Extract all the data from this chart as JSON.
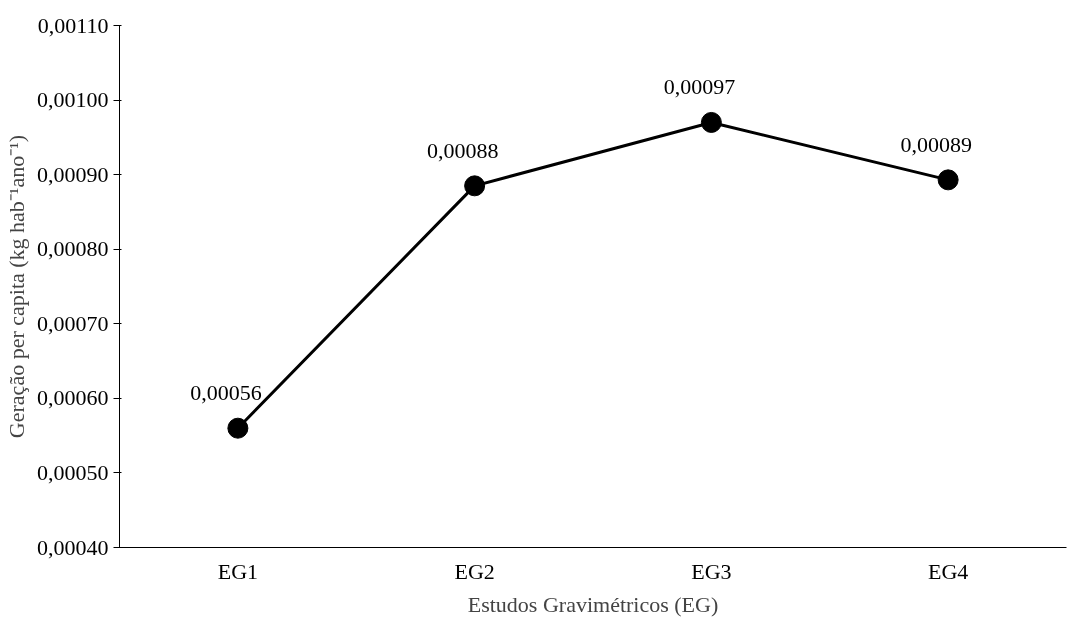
{
  "chart_data": {
    "type": "line",
    "xlabel": "Estudos Gravimétricos (EG)",
    "ylabel": "Geração per capita (kg hab⁻¹ano⁻¹)",
    "categories": [
      "EG1",
      "EG2",
      "EG3",
      "EG4"
    ],
    "series": [
      {
        "color": "#000000",
        "values": [
          0.00056,
          0.000885,
          0.00097,
          0.000893
        ],
        "value_labels": [
          "0,00056",
          "0,00088",
          "0,00097",
          "0,00089"
        ]
      }
    ],
    "ylim": [
      0.0004,
      0.0011
    ],
    "yticks": [
      {
        "value": 0.0004,
        "label": "0,00040"
      },
      {
        "value": 0.0005,
        "label": "0,00050"
      },
      {
        "value": 0.0006,
        "label": "0,00060"
      },
      {
        "value": 0.0007,
        "label": "0,00070"
      },
      {
        "value": 0.0008,
        "label": "0,00080"
      },
      {
        "value": 0.0009,
        "label": "0,00090"
      },
      {
        "value": 0.001,
        "label": "0,00100"
      },
      {
        "value": 0.0011,
        "label": "0,00110"
      }
    ],
    "grid": false,
    "marker": "circle",
    "line_style": "solid"
  }
}
